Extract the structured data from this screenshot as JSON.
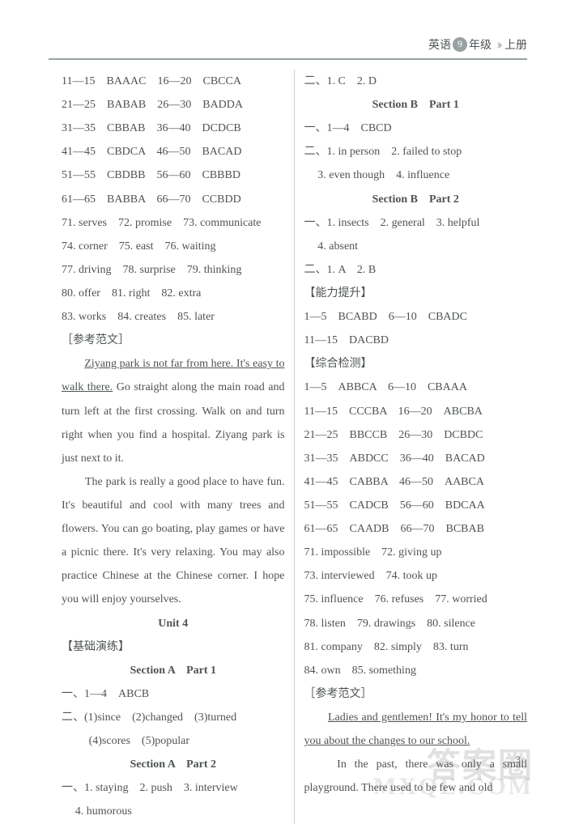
{
  "header": {
    "subject": "英语",
    "grade_num": "9",
    "grade_suffix": "年级",
    "volume": "上册"
  },
  "page_number": "3",
  "watermark1": "答案圈",
  "watermark2": "MXQE.COM",
  "columns": [
    {
      "t": "line",
      "text": "11—15　BAAAC　16—20　CBCCA"
    },
    {
      "t": "line",
      "text": "21—25　BABAB　26—30　BADDA"
    },
    {
      "t": "line",
      "text": "31—35　CBBAB　36—40　DCDCB"
    },
    {
      "t": "line",
      "text": "41—45　CBDCA　46—50　BACAD"
    },
    {
      "t": "line",
      "text": "51—55　CBDBB　56—60　CBBBD"
    },
    {
      "t": "line",
      "text": "61—65　BABBA　66—70　CCBDD"
    },
    {
      "t": "line",
      "text": "71. serves　72. promise　73. communicate"
    },
    {
      "t": "line",
      "text": "74. corner　75. east　76. waiting"
    },
    {
      "t": "line",
      "text": "77. driving　78. surprise　79. thinking"
    },
    {
      "t": "line",
      "text": "80. offer　81. right　82. extra"
    },
    {
      "t": "line",
      "text": "83. works　84. creates　85. later"
    },
    {
      "t": "line",
      "cls": "zh",
      "text": "［参考范文］"
    },
    {
      "t": "para",
      "cls": "justify",
      "segments": [
        {
          "text": "　　",
          "u": false
        },
        {
          "text": "Ziyang park is not far from here. It's easy to walk there.",
          "u": true
        },
        {
          "text": " Go straight along the main road and turn left at the first crossing. Walk on and turn right when you find a hospital. Ziyang park is just next to it.",
          "u": false
        }
      ]
    },
    {
      "t": "para",
      "cls": "justify",
      "segments": [
        {
          "text": "　　The park is really a good place to have fun. It's beautiful and cool with many trees and flowers. You can go boating, play games or have a picnic there. It's very relaxing. You may also practice Chinese at the Chinese corner. I hope you will enjoy yourselves.",
          "u": false
        }
      ]
    },
    {
      "t": "sh",
      "text": "Unit 4"
    },
    {
      "t": "line",
      "cls": "zh",
      "text": "【基础演练】"
    },
    {
      "t": "sh",
      "text": "Section A　Part 1"
    },
    {
      "t": "line",
      "cls": "zh",
      "text": "一、1—4　ABCB"
    },
    {
      "t": "line",
      "cls": "zh",
      "text": "二、(1)since　(2)changed　(3)turned"
    },
    {
      "t": "line",
      "cls": "indent2",
      "text": "(4)scores　(5)popular"
    },
    {
      "t": "sh",
      "text": "Section A　Part 2"
    },
    {
      "t": "line",
      "cls": "zh",
      "text": "一、1. staying　2. push　3. interview"
    },
    {
      "t": "line",
      "cls": "small-indent",
      "text": "4. humorous"
    },
    {
      "t": "line",
      "cls": "zh",
      "text": "二、1. C　2. D"
    },
    {
      "t": "sh",
      "text": "Section B　Part 1"
    },
    {
      "t": "line",
      "cls": "zh",
      "text": "一、1—4　CBCD"
    },
    {
      "t": "line",
      "cls": "zh",
      "text": "二、1. in person　2. failed to stop"
    },
    {
      "t": "line",
      "cls": "small-indent",
      "text": "3. even though　4. influence"
    },
    {
      "t": "sh",
      "text": "Section B　Part 2"
    },
    {
      "t": "line",
      "cls": "zh",
      "text": "一、1. insects　2. general　3. helpful"
    },
    {
      "t": "line",
      "cls": "small-indent",
      "text": "4. absent"
    },
    {
      "t": "line",
      "cls": "zh",
      "text": "二、1. A　2. B"
    },
    {
      "t": "line",
      "cls": "zh",
      "text": "【能力提升】"
    },
    {
      "t": "line",
      "text": "1—5　BCABD　6—10　CBADC"
    },
    {
      "t": "line",
      "text": "11—15　DACBD"
    },
    {
      "t": "line",
      "cls": "zh",
      "text": "【综合检测】"
    },
    {
      "t": "line",
      "text": "1—5　ABBCA　6—10　CBAAA"
    },
    {
      "t": "line",
      "text": "11—15　CCCBA　16—20　ABCBA"
    },
    {
      "t": "line",
      "text": "21—25　BBCCB　26—30　DCBDC"
    },
    {
      "t": "line",
      "text": "31—35　ABDCC　36—40　BACAD"
    },
    {
      "t": "line",
      "text": "41—45　CABBA　46—50　AABCA"
    },
    {
      "t": "line",
      "text": "51—55　CADCB　56—60　BDCAA"
    },
    {
      "t": "line",
      "text": "61—65　CAADB　66—70　BCBAB"
    },
    {
      "t": "line",
      "text": "71. impossible　72. giving up"
    },
    {
      "t": "line",
      "text": "73. interviewed　74. took up"
    },
    {
      "t": "line",
      "text": "75. influence　76. refuses　77. worried"
    },
    {
      "t": "line",
      "text": "78. listen　79. drawings　80. silence"
    },
    {
      "t": "line",
      "text": "81. company　82. simply　83. turn"
    },
    {
      "t": "line",
      "text": "84. own　85. something"
    },
    {
      "t": "line",
      "cls": "zh",
      "text": "［参考范文］"
    },
    {
      "t": "para",
      "cls": "justify",
      "segments": [
        {
          "text": "　　",
          "u": false
        },
        {
          "text": "Ladies and gentlemen! It's my honor to tell you about the changes to our school.",
          "u": true
        }
      ]
    },
    {
      "t": "para",
      "cls": "justify",
      "segments": [
        {
          "text": "　　In the past, there was only a small playground. There used to be few and old",
          "u": false
        }
      ]
    }
  ]
}
